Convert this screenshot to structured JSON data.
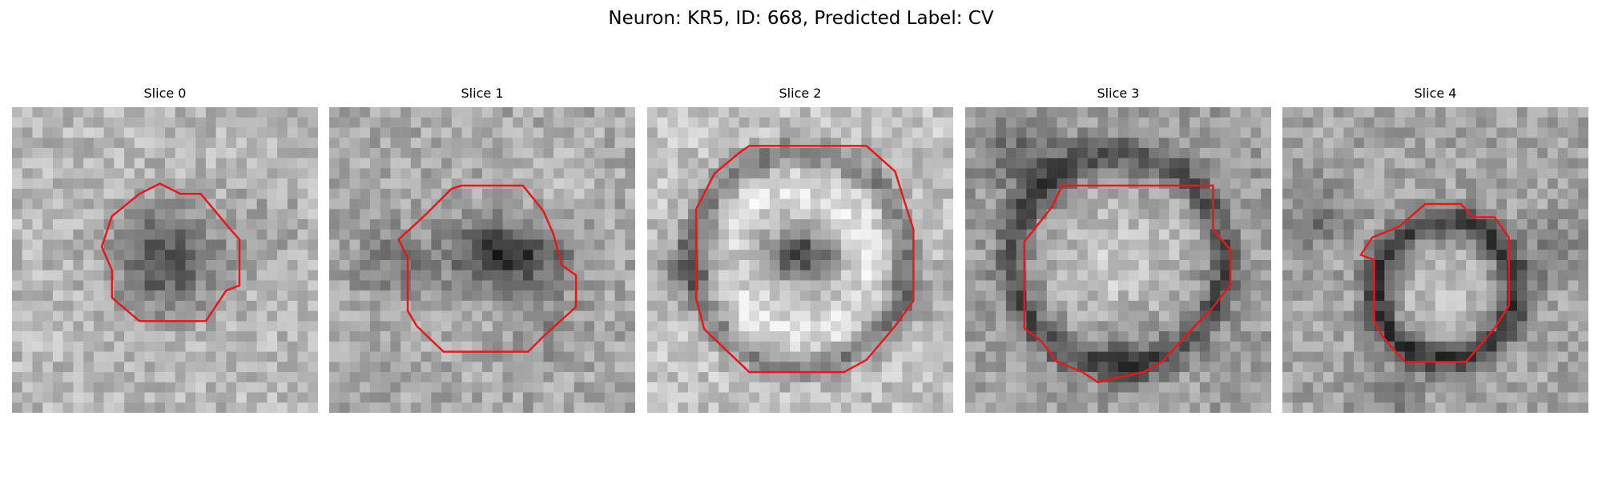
{
  "figure": {
    "title": "Neuron: KR5, ID: 668, Predicted Label: CV"
  },
  "colors": {
    "contour": "#e31a1c",
    "background": "#ffffff",
    "colormap": "grayscale"
  },
  "panels": [
    {
      "title": "Slice 0",
      "pattern": "dark-blob-center"
    },
    {
      "title": "Slice 1",
      "pattern": "dark-blob-offset"
    },
    {
      "title": "Slice 2",
      "pattern": "ring-with-dark-core"
    },
    {
      "title": "Slice 3",
      "pattern": "light-center-dark-ring"
    },
    {
      "title": "Slice 4",
      "pattern": "small-light-center-dark-ring"
    }
  ]
}
